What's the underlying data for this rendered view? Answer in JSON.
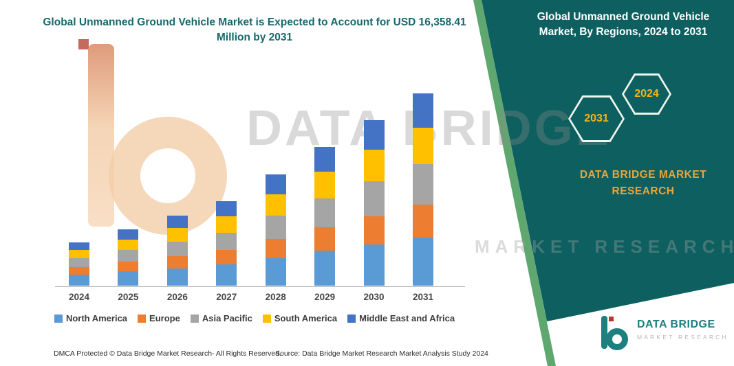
{
  "band": {
    "heading": "Global Unmanned Ground Vehicle Market, By Regions, 2024 to 2031",
    "hexagon_years": [
      "2031",
      "2024"
    ],
    "brand": "DATA BRIDGE MARKET RESEARCH"
  },
  "watermark": {
    "line1": "DATA BRIDGE",
    "line2": "MARKET RESEARCH"
  },
  "logo": {
    "name": "DATA BRIDGE",
    "subtitle": "MARKET RESEARCH"
  },
  "footer": {
    "dmca": "DMCA Protected © Data Bridge Market Research-  All Rights Reserved.",
    "source": "Source: Data Bridge Market Research  Market Analysis Study 2024"
  },
  "colors": {
    "teal": "#0e5f5f",
    "teal_text": "#15696b",
    "stripe_green": "#5ea76f",
    "gold": "#eaa53c",
    "gold_bright": "#f4b41a",
    "logo_teal": "#1e7f7f",
    "accent_red": "#b23a28"
  },
  "chart_data": {
    "type": "bar",
    "stacked": true,
    "title": "Global Unmanned Ground Vehicle Market is Expected to Account for USD 16,358.41 Million by 2031",
    "unit": "USD Million",
    "categories": [
      "2024",
      "2025",
      "2026",
      "2027",
      "2028",
      "2029",
      "2030",
      "2031"
    ],
    "series": [
      {
        "name": "North America",
        "color": "#5B9BD5",
        "values": [
          925,
          1200,
          1488,
          1788,
          2363,
          2950,
          3513,
          4090
        ]
      },
      {
        "name": "Europe",
        "color": "#ED7D31",
        "values": [
          629,
          816,
          1012,
          1216,
          1607,
          2006,
          2389,
          2781
        ]
      },
      {
        "name": "Asia Pacific",
        "color": "#A5A5A5",
        "values": [
          777,
          1008,
          1250,
          1502,
          1985,
          2478,
          2951,
          3435
        ]
      },
      {
        "name": "South America",
        "color": "#FFC000",
        "values": [
          703,
          912,
          1131,
          1359,
          1796,
          2242,
          2670,
          3108
        ]
      },
      {
        "name": "Middle East and Africa",
        "color": "#4472C4",
        "values": [
          666,
          864,
          1071,
          1287,
          1701,
          2124,
          2530,
          2944
        ]
      }
    ],
    "total_2031_labeled": 16358.41,
    "ylim": [
      0,
      16500
    ],
    "xlabel": "",
    "ylabel": "",
    "grid": false,
    "legend_position": "bottom"
  }
}
